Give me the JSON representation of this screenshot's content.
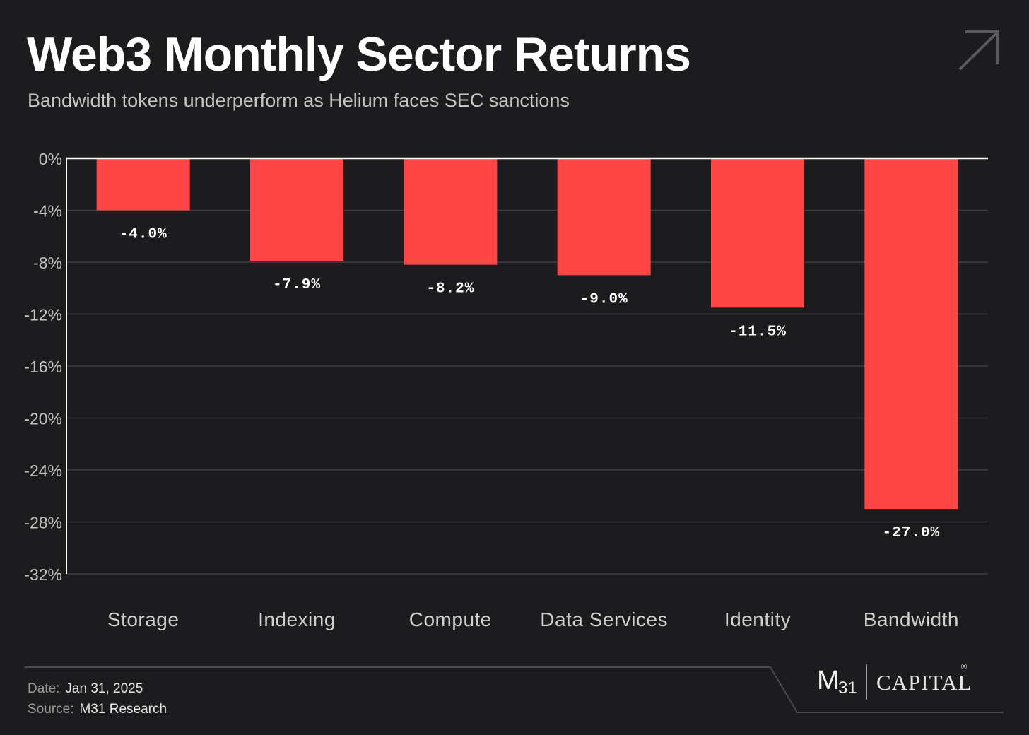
{
  "header": {
    "title": "Web3 Monthly Sector Returns",
    "subtitle": "Bandwidth tokens underperform as Helium faces SEC sanctions"
  },
  "chart_data": {
    "type": "bar",
    "categories": [
      "Storage",
      "Indexing",
      "Compute",
      "Data Services",
      "Identity",
      "Bandwidth"
    ],
    "values": [
      -4.0,
      -7.9,
      -8.2,
      -9.0,
      -11.5,
      -27.0
    ],
    "value_labels": [
      "-4.0%",
      "-7.9%",
      "-8.2%",
      "-9.0%",
      "-11.5%",
      "-27.0%"
    ],
    "ylim": [
      -32,
      0
    ],
    "yticks": [
      0,
      -4,
      -8,
      -12,
      -16,
      -20,
      -24,
      -28,
      -32
    ],
    "ytick_labels": [
      "0%",
      "-4%",
      "-8%",
      "-12%",
      "-16%",
      "-20%",
      "-24%",
      "-28%",
      "-32%"
    ],
    "grid": true,
    "bar_color": "#ff4545"
  },
  "footer": {
    "date_label": "Date:",
    "date_value": "Jan 31, 2025",
    "source_label": "Source:",
    "source_value": "M31 Research"
  },
  "brand": {
    "m": "M",
    "sub": "31",
    "capital": "CAPITAL",
    "reg": "®"
  },
  "icons": {
    "corner": "arrow-up-right-icon"
  },
  "colors": {
    "background": "#1c1c1e",
    "accent": "#ff4545"
  }
}
